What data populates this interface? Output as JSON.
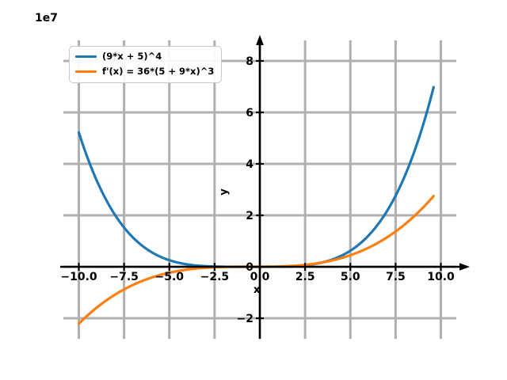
{
  "figure": {
    "offset_text": "1e7",
    "xlabel": "x",
    "ylabel": "y",
    "background": "#ffffff"
  },
  "legend": {
    "position": "upper left",
    "entries": [
      {
        "label": "(9*x + 5)^4",
        "color": "#1f77b4"
      },
      {
        "label": "f'(x) = 36*(5 + 9*x)^3",
        "color": "#ff7f0e"
      }
    ]
  },
  "chart_data": {
    "type": "line",
    "title": "",
    "xlabel": "x",
    "ylabel": "y",
    "y_offset_multiplier": "1e7",
    "grid": true,
    "grid_color": "#b0b0b0",
    "axis_color": "#000000",
    "legend_position": "upper left",
    "xlim": [
      -10.85,
      10.85
    ],
    "ylim": [
      -28000000,
      88000000
    ],
    "x_range_of_data": [
      -10,
      9.6
    ],
    "xticks": {
      "values": [
        -10,
        -7.5,
        -5,
        -2.5,
        0,
        2.5,
        5,
        7.5,
        10
      ],
      "labels": [
        "−10.0",
        "−7.5",
        "−5.0",
        "−2.5",
        "0.0",
        "2.5",
        "5.0",
        "7.5",
        "10.0"
      ]
    },
    "yticks": {
      "values": [
        -20000000,
        0,
        20000000,
        40000000,
        60000000,
        80000000
      ],
      "labels": [
        "−2",
        "0",
        "2",
        "4",
        "6",
        "8"
      ]
    },
    "series": [
      {
        "name": "(9*x + 5)^4",
        "color": "#1f77b4",
        "fn": {
          "scale": 1,
          "a": 9,
          "b": 5,
          "power": 4
        },
        "key_points": [
          {
            "x": -10,
            "y": 52200625
          },
          {
            "x": -7.5,
            "y": 15258789
          },
          {
            "x": -5,
            "y": 2560000
          },
          {
            "x": -0.556,
            "y": 0
          },
          {
            "x": 0,
            "y": 625
          },
          {
            "x": 2.5,
            "y": 570304
          },
          {
            "x": 5,
            "y": 6250000
          },
          {
            "x": 7.5,
            "y": 26364572
          },
          {
            "x": 9.6,
            "y": 69788648
          }
        ]
      },
      {
        "name": "f'(x) = 36*(5 + 9*x)^3",
        "color": "#ff7f0e",
        "fn": {
          "scale": 36,
          "a": 9,
          "b": 5,
          "power": 3
        },
        "key_points": [
          {
            "x": -10,
            "y": -22108500
          },
          {
            "x": -7.5,
            "y": -8789062
          },
          {
            "x": -5,
            "y": -2304000
          },
          {
            "x": -0.556,
            "y": 0
          },
          {
            "x": 0,
            "y": 4500
          },
          {
            "x": 2.5,
            "y": 747000
          },
          {
            "x": 5,
            "y": 4500000
          },
          {
            "x": 7.5,
            "y": 12655125
          },
          {
            "x": 9.6,
            "y": 27487869
          }
        ]
      }
    ]
  }
}
